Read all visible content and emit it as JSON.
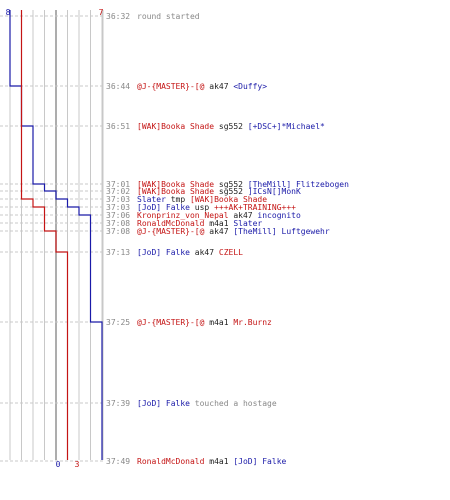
{
  "colors": {
    "ct": "#1a1aa8",
    "t": "#c41414",
    "neutral": "#888888",
    "grid": "#c8c8c8",
    "text": "#222222"
  },
  "score": {
    "ct_start": "8",
    "t_start": "7",
    "ct_end": "0",
    "t_end": "3"
  },
  "chart_data": {
    "type": "line",
    "title": "",
    "x_range": [
      0,
      8
    ],
    "series": [
      {
        "team": "ct",
        "color": "#1a1aa8",
        "steps": [
          [
            0,
            8
          ],
          [
            1,
            7
          ],
          [
            2,
            6
          ],
          [
            3,
            5
          ],
          [
            4,
            4
          ],
          [
            5,
            3
          ],
          [
            6,
            2
          ],
          [
            7,
            1
          ],
          [
            11,
            0
          ]
        ]
      },
      {
        "team": "t",
        "color": "#c41414",
        "steps": [
          [
            0,
            7
          ],
          [
            5,
            6
          ],
          [
            6,
            5
          ],
          [
            9,
            4
          ],
          [
            10,
            3
          ]
        ]
      }
    ]
  },
  "events": [
    {
      "time": "36:32",
      "parts": [
        {
          "text": "round started",
          "color": "#888888"
        }
      ]
    },
    {
      "time": "36:44",
      "parts": [
        {
          "text": "@J-{MASTER}-[@",
          "color": "#c41414"
        },
        {
          "text": " ak47 ",
          "color": "#222222"
        },
        {
          "text": "<Duffy>",
          "color": "#1a1aa8"
        }
      ]
    },
    {
      "time": "36:51",
      "parts": [
        {
          "text": "[WAK]Booka Shade",
          "color": "#c41414"
        },
        {
          "text": " sg552 ",
          "color": "#222222"
        },
        {
          "text": "[+DSC+]*Michael*",
          "color": "#1a1aa8"
        }
      ]
    },
    {
      "time": "37:01",
      "parts": [
        {
          "text": "[WAK]Booka Shade",
          "color": "#c41414"
        },
        {
          "text": " sg552 ",
          "color": "#222222"
        },
        {
          "text": "[TheMill] Flitzebogen",
          "color": "#1a1aa8"
        }
      ]
    },
    {
      "time": "37:02",
      "parts": [
        {
          "text": "[WAK]Booka Shade",
          "color": "#c41414"
        },
        {
          "text": " sg552 ",
          "color": "#222222"
        },
        {
          "text": "]ICsN[]MonK",
          "color": "#1a1aa8"
        }
      ]
    },
    {
      "time": "37:03",
      "parts": [
        {
          "text": "Slater",
          "color": "#1a1aa8"
        },
        {
          "text": " tmp ",
          "color": "#222222"
        },
        {
          "text": "[WAK]Booka Shade",
          "color": "#c41414"
        }
      ]
    },
    {
      "time": "37:03",
      "parts": [
        {
          "text": "[JoD] Falke",
          "color": "#1a1aa8"
        },
        {
          "text": " usp ",
          "color": "#222222"
        },
        {
          "text": "+++AK+TRAINING+++",
          "color": "#c41414"
        }
      ]
    },
    {
      "time": "37:06",
      "parts": [
        {
          "text": "Kronprinz_von_Nepal",
          "color": "#c41414"
        },
        {
          "text": " ak47 ",
          "color": "#222222"
        },
        {
          "text": "incognito",
          "color": "#1a1aa8"
        }
      ]
    },
    {
      "time": "37:08",
      "parts": [
        {
          "text": "RonaldMcDonald",
          "color": "#c41414"
        },
        {
          "text": " m4a1 ",
          "color": "#222222"
        },
        {
          "text": "Slater",
          "color": "#1a1aa8"
        }
      ]
    },
    {
      "time": "37:08",
      "parts": [
        {
          "text": "@J-{MASTER}-[@",
          "color": "#c41414"
        },
        {
          "text": " ak47 ",
          "color": "#222222"
        },
        {
          "text": "[TheMill] Luftgewehr",
          "color": "#1a1aa8"
        }
      ]
    },
    {
      "time": "37:13",
      "parts": [
        {
          "text": "[JoD] Falke",
          "color": "#1a1aa8"
        },
        {
          "text": " ak47 ",
          "color": "#222222"
        },
        {
          "text": "CZELL",
          "color": "#c41414"
        }
      ]
    },
    {
      "time": "37:25",
      "parts": [
        {
          "text": "@J-{MASTER}-[@",
          "color": "#c41414"
        },
        {
          "text": " m4a1 ",
          "color": "#222222"
        },
        {
          "text": "Mr.Burnz",
          "color": "#c41414"
        }
      ]
    },
    {
      "time": "37:39",
      "parts": [
        {
          "text": "[JoD] Falke",
          "color": "#1a1aa8"
        },
        {
          "text": " touched a hostage",
          "color": "#888888"
        }
      ]
    },
    {
      "time": "37:49",
      "parts": [
        {
          "text": "RonaldMcDonald",
          "color": "#c41414"
        },
        {
          "text": " m4a1 ",
          "color": "#222222"
        },
        {
          "text": "[JoD] Falke",
          "color": "#1a1aa8"
        }
      ]
    }
  ]
}
